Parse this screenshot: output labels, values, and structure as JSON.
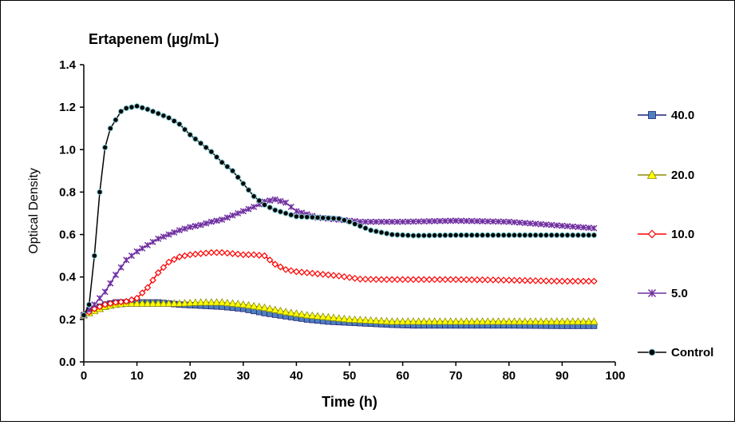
{
  "chart_data": {
    "type": "line",
    "title": "Ertapenem (µg/mL)",
    "xlabel": "Time (h)",
    "ylabel": "Optical Density",
    "xlim": [
      0,
      100
    ],
    "ylim": [
      0,
      1.4
    ],
    "x_ticks": [
      "0",
      "10",
      "20",
      "30",
      "40",
      "50",
      "60",
      "70",
      "80",
      "90",
      "100"
    ],
    "y_ticks": [
      "0.0",
      "0.2",
      "0.4",
      "0.6",
      "0.8",
      "1.0",
      "1.2",
      "1.4"
    ],
    "grid": false,
    "legend_position": "right",
    "series": [
      {
        "name": "40.0",
        "color": "#1f1f7a",
        "marker": "square",
        "marker_fill": "#4f81bd",
        "points": [
          [
            0,
            0.22
          ],
          [
            2,
            0.25
          ],
          [
            4,
            0.27
          ],
          [
            6,
            0.28
          ],
          [
            8,
            0.28
          ],
          [
            10,
            0.28
          ],
          [
            14,
            0.28
          ],
          [
            18,
            0.27
          ],
          [
            22,
            0.265
          ],
          [
            26,
            0.26
          ],
          [
            30,
            0.25
          ],
          [
            34,
            0.23
          ],
          [
            38,
            0.215
          ],
          [
            42,
            0.2
          ],
          [
            46,
            0.19
          ],
          [
            50,
            0.185
          ],
          [
            54,
            0.18
          ],
          [
            58,
            0.175
          ],
          [
            62,
            0.172
          ],
          [
            70,
            0.172
          ],
          [
            80,
            0.172
          ],
          [
            90,
            0.17
          ],
          [
            96,
            0.17
          ]
        ]
      },
      {
        "name": "20.0",
        "color": "#8b8b00",
        "marker": "triangle",
        "marker_fill": "#ffff00",
        "points": [
          [
            0,
            0.22
          ],
          [
            2,
            0.24
          ],
          [
            4,
            0.26
          ],
          [
            6,
            0.27
          ],
          [
            8,
            0.275
          ],
          [
            10,
            0.275
          ],
          [
            14,
            0.275
          ],
          [
            18,
            0.275
          ],
          [
            22,
            0.28
          ],
          [
            26,
            0.28
          ],
          [
            30,
            0.27
          ],
          [
            34,
            0.255
          ],
          [
            38,
            0.235
          ],
          [
            42,
            0.22
          ],
          [
            46,
            0.21
          ],
          [
            50,
            0.2
          ],
          [
            54,
            0.195
          ],
          [
            58,
            0.19
          ],
          [
            62,
            0.19
          ],
          [
            70,
            0.19
          ],
          [
            80,
            0.19
          ],
          [
            90,
            0.19
          ],
          [
            96,
            0.19
          ]
        ]
      },
      {
        "name": "10.0",
        "color": "#ff0000",
        "marker": "diamond",
        "marker_fill": "#ffffff",
        "points": [
          [
            0,
            0.22
          ],
          [
            2,
            0.25
          ],
          [
            4,
            0.27
          ],
          [
            6,
            0.28
          ],
          [
            8,
            0.285
          ],
          [
            10,
            0.3
          ],
          [
            12,
            0.35
          ],
          [
            14,
            0.42
          ],
          [
            16,
            0.47
          ],
          [
            18,
            0.495
          ],
          [
            20,
            0.505
          ],
          [
            22,
            0.51
          ],
          [
            24,
            0.515
          ],
          [
            26,
            0.515
          ],
          [
            28,
            0.51
          ],
          [
            30,
            0.505
          ],
          [
            32,
            0.505
          ],
          [
            34,
            0.5
          ],
          [
            36,
            0.46
          ],
          [
            38,
            0.435
          ],
          [
            40,
            0.425
          ],
          [
            44,
            0.415
          ],
          [
            48,
            0.405
          ],
          [
            52,
            0.39
          ],
          [
            56,
            0.388
          ],
          [
            60,
            0.388
          ],
          [
            70,
            0.388
          ],
          [
            80,
            0.385
          ],
          [
            90,
            0.38
          ],
          [
            96,
            0.38
          ]
        ]
      },
      {
        "name": "5.0",
        "color": "#7030a0",
        "marker": "star",
        "marker_fill": "#7030a0",
        "points": [
          [
            0,
            0.22
          ],
          [
            2,
            0.27
          ],
          [
            4,
            0.33
          ],
          [
            6,
            0.41
          ],
          [
            8,
            0.48
          ],
          [
            10,
            0.52
          ],
          [
            12,
            0.55
          ],
          [
            14,
            0.58
          ],
          [
            16,
            0.6
          ],
          [
            18,
            0.62
          ],
          [
            20,
            0.635
          ],
          [
            22,
            0.645
          ],
          [
            24,
            0.66
          ],
          [
            26,
            0.67
          ],
          [
            28,
            0.69
          ],
          [
            30,
            0.71
          ],
          [
            32,
            0.73
          ],
          [
            34,
            0.755
          ],
          [
            36,
            0.765
          ],
          [
            38,
            0.75
          ],
          [
            40,
            0.71
          ],
          [
            44,
            0.68
          ],
          [
            48,
            0.67
          ],
          [
            52,
            0.66
          ],
          [
            56,
            0.66
          ],
          [
            60,
            0.66
          ],
          [
            70,
            0.665
          ],
          [
            80,
            0.66
          ],
          [
            88,
            0.645
          ],
          [
            96,
            0.63
          ]
        ]
      },
      {
        "name": "Control",
        "color": "#000000",
        "marker": "circle",
        "marker_fill": "#000000",
        "points": [
          [
            0,
            0.22
          ],
          [
            1,
            0.27
          ],
          [
            2,
            0.5
          ],
          [
            3,
            0.8
          ],
          [
            4,
            1.01
          ],
          [
            5,
            1.1
          ],
          [
            6,
            1.14
          ],
          [
            7,
            1.18
          ],
          [
            8,
            1.195
          ],
          [
            10,
            1.205
          ],
          [
            12,
            1.19
          ],
          [
            14,
            1.17
          ],
          [
            16,
            1.15
          ],
          [
            18,
            1.12
          ],
          [
            20,
            1.07
          ],
          [
            22,
            1.03
          ],
          [
            24,
            0.99
          ],
          [
            26,
            0.94
          ],
          [
            28,
            0.9
          ],
          [
            30,
            0.84
          ],
          [
            32,
            0.78
          ],
          [
            34,
            0.74
          ],
          [
            36,
            0.715
          ],
          [
            38,
            0.7
          ],
          [
            40,
            0.685
          ],
          [
            44,
            0.68
          ],
          [
            48,
            0.675
          ],
          [
            50,
            0.66
          ],
          [
            54,
            0.62
          ],
          [
            58,
            0.6
          ],
          [
            62,
            0.595
          ],
          [
            70,
            0.597
          ],
          [
            80,
            0.597
          ],
          [
            90,
            0.597
          ],
          [
            96,
            0.597
          ]
        ]
      }
    ]
  }
}
